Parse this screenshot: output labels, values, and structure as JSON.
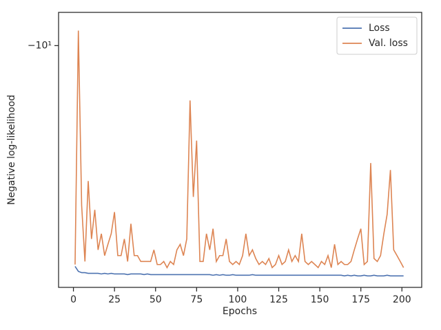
{
  "chart_data": {
    "type": "line",
    "yscale": "symlog",
    "xlabel": "Epochs",
    "ylabel": "Negative log-likelihood",
    "x": [
      1,
      3,
      5,
      7,
      9,
      11,
      13,
      15,
      17,
      19,
      21,
      23,
      25,
      27,
      29,
      31,
      33,
      35,
      37,
      39,
      41,
      43,
      45,
      47,
      49,
      51,
      53,
      55,
      57,
      59,
      61,
      63,
      65,
      67,
      69,
      71,
      73,
      75,
      77,
      79,
      81,
      83,
      85,
      87,
      89,
      91,
      93,
      95,
      97,
      99,
      101,
      103,
      105,
      107,
      109,
      111,
      113,
      115,
      117,
      119,
      121,
      123,
      125,
      127,
      129,
      131,
      133,
      135,
      137,
      139,
      141,
      143,
      145,
      147,
      149,
      151,
      153,
      155,
      157,
      159,
      161,
      163,
      165,
      167,
      169,
      171,
      173,
      175,
      177,
      179,
      181,
      183,
      185,
      187,
      189,
      191,
      193,
      195,
      197,
      199,
      201
    ],
    "series": [
      {
        "name": "Loss",
        "color": "#4c72b0",
        "values": [
          -2.82,
          -2.74,
          -2.72,
          -2.72,
          -2.71,
          -2.71,
          -2.71,
          -2.71,
          -2.7,
          -2.71,
          -2.7,
          -2.71,
          -2.7,
          -2.7,
          -2.7,
          -2.7,
          -2.69,
          -2.7,
          -2.7,
          -2.7,
          -2.7,
          -2.69,
          -2.7,
          -2.69,
          -2.69,
          -2.69,
          -2.69,
          -2.69,
          -2.69,
          -2.69,
          -2.69,
          -2.69,
          -2.69,
          -2.69,
          -2.69,
          -2.69,
          -2.69,
          -2.69,
          -2.69,
          -2.69,
          -2.69,
          -2.69,
          -2.68,
          -2.69,
          -2.68,
          -2.69,
          -2.68,
          -2.68,
          -2.69,
          -2.68,
          -2.68,
          -2.68,
          -2.68,
          -2.68,
          -2.69,
          -2.68,
          -2.68,
          -2.68,
          -2.68,
          -2.68,
          -2.68,
          -2.68,
          -2.68,
          -2.68,
          -2.68,
          -2.68,
          -2.68,
          -2.68,
          -2.68,
          -2.68,
          -2.68,
          -2.68,
          -2.68,
          -2.68,
          -2.68,
          -2.68,
          -2.68,
          -2.68,
          -2.68,
          -2.68,
          -2.68,
          -2.68,
          -2.67,
          -2.68,
          -2.67,
          -2.68,
          -2.67,
          -2.67,
          -2.68,
          -2.67,
          -2.67,
          -2.68,
          -2.67,
          -2.67,
          -2.67,
          -2.68,
          -2.67,
          -2.67,
          -2.67,
          -2.67,
          -2.67
        ]
      },
      {
        "name": "Val. loss",
        "color": "#dd8452",
        "values": [
          -2.85,
          -10.9,
          -4.0,
          -2.9,
          -4.6,
          -3.3,
          -3.9,
          -3.1,
          -3.4,
          -3.0,
          -3.2,
          -3.4,
          -3.85,
          -3.0,
          -3.0,
          -3.3,
          -2.9,
          -3.6,
          -3.0,
          -3.0,
          -2.9,
          -2.9,
          -2.9,
          -2.9,
          -3.1,
          -2.85,
          -2.85,
          -2.9,
          -2.8,
          -2.9,
          -2.85,
          -3.1,
          -3.2,
          -3.0,
          -3.3,
          -7.3,
          -4.2,
          -5.8,
          -2.9,
          -2.9,
          -3.4,
          -3.1,
          -3.5,
          -2.9,
          -3.0,
          -3.0,
          -3.3,
          -2.9,
          -2.85,
          -2.9,
          -2.85,
          -3.0,
          -3.4,
          -3.0,
          -3.1,
          -2.95,
          -2.85,
          -2.9,
          -2.85,
          -2.95,
          -2.8,
          -2.85,
          -3.0,
          -2.85,
          -2.9,
          -3.1,
          -2.9,
          -3.0,
          -2.9,
          -3.4,
          -2.9,
          -2.85,
          -2.9,
          -2.85,
          -2.8,
          -2.9,
          -2.85,
          -3.0,
          -2.8,
          -3.2,
          -2.85,
          -2.9,
          -2.85,
          -2.85,
          -2.9,
          -3.1,
          -3.3,
          -3.5,
          -2.85,
          -2.9,
          -5.1,
          -2.95,
          -2.9,
          -3.0,
          -3.4,
          -3.8,
          -4.9,
          -3.1,
          -3.0,
          -2.9,
          -2.8
        ]
      }
    ],
    "xlim": [
      -9.05,
      212.05
    ],
    "xticks": [
      0,
      25,
      50,
      75,
      100,
      125,
      150,
      175,
      200
    ],
    "ylim": [
      -2.5,
      -12.1
    ],
    "yticks": [
      {
        "value": -10,
        "label": "−10¹"
      }
    ],
    "grid": false,
    "legend": "upper right"
  }
}
